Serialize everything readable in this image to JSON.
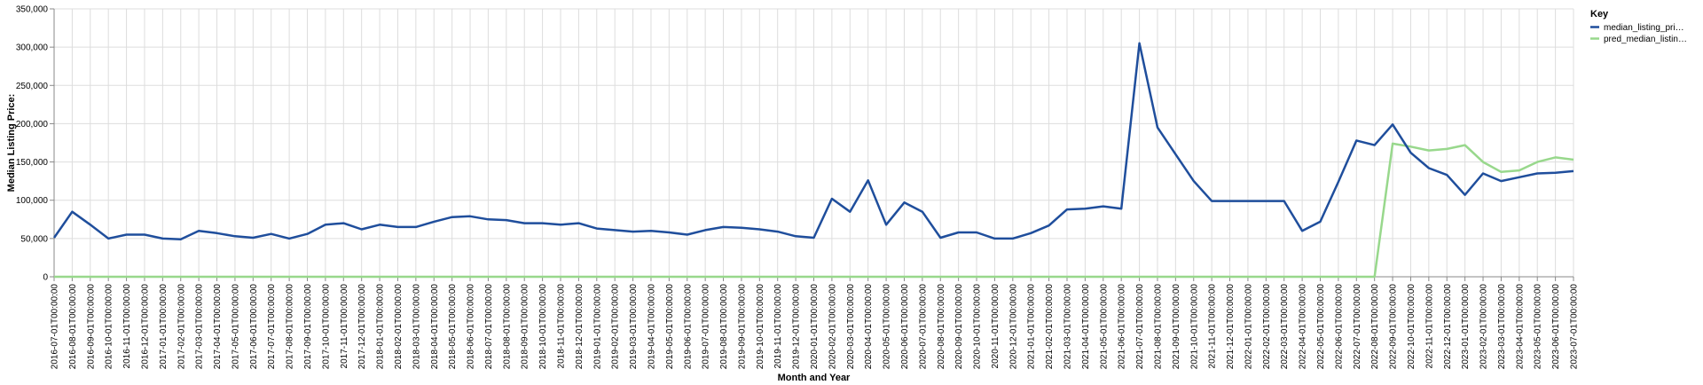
{
  "chart_data": {
    "type": "line",
    "xlabel": "Month and Year",
    "ylabel": "Median Listing Price:",
    "ylim": [
      0,
      350000
    ],
    "y_ticks": [
      "0",
      "50,000",
      "100,000",
      "150,000",
      "200,000",
      "250,000",
      "300,000",
      "350,000"
    ],
    "grid": true,
    "legend": {
      "title": "Key",
      "placement": "top-right",
      "entries": [
        "median_listing_pri…",
        "pred_median_listin…"
      ]
    },
    "x": [
      "2016-07-01T00:00:00",
      "2016-08-01T00:00:00",
      "2016-09-01T00:00:00",
      "2016-10-01T00:00:00",
      "2016-11-01T00:00:00",
      "2016-12-01T00:00:00",
      "2017-01-01T00:00:00",
      "2017-02-01T00:00:00",
      "2017-03-01T00:00:00",
      "2017-04-01T00:00:00",
      "2017-05-01T00:00:00",
      "2017-06-01T00:00:00",
      "2017-07-01T00:00:00",
      "2017-08-01T00:00:00",
      "2017-09-01T00:00:00",
      "2017-10-01T00:00:00",
      "2017-11-01T00:00:00",
      "2017-12-01T00:00:00",
      "2018-01-01T00:00:00",
      "2018-02-01T00:00:00",
      "2018-03-01T00:00:00",
      "2018-04-01T00:00:00",
      "2018-05-01T00:00:00",
      "2018-06-01T00:00:00",
      "2018-07-01T00:00:00",
      "2018-08-01T00:00:00",
      "2018-09-01T00:00:00",
      "2018-10-01T00:00:00",
      "2018-11-01T00:00:00",
      "2018-12-01T00:00:00",
      "2019-01-01T00:00:00",
      "2019-02-01T00:00:00",
      "2019-03-01T00:00:00",
      "2019-04-01T00:00:00",
      "2019-05-01T00:00:00",
      "2019-06-01T00:00:00",
      "2019-07-01T00:00:00",
      "2019-08-01T00:00:00",
      "2019-09-01T00:00:00",
      "2019-10-01T00:00:00",
      "2019-11-01T00:00:00",
      "2019-12-01T00:00:00",
      "2020-01-01T00:00:00",
      "2020-02-01T00:00:00",
      "2020-03-01T00:00:00",
      "2020-04-01T00:00:00",
      "2020-05-01T00:00:00",
      "2020-06-01T00:00:00",
      "2020-07-01T00:00:00",
      "2020-08-01T00:00:00",
      "2020-09-01T00:00:00",
      "2020-10-01T00:00:00",
      "2020-11-01T00:00:00",
      "2020-12-01T00:00:00",
      "2021-01-01T00:00:00",
      "2021-02-01T00:00:00",
      "2021-03-01T00:00:00",
      "2021-04-01T00:00:00",
      "2021-05-01T00:00:00",
      "2021-06-01T00:00:00",
      "2021-07-01T00:00:00",
      "2021-08-01T00:00:00",
      "2021-09-01T00:00:00",
      "2021-10-01T00:00:00",
      "2021-11-01T00:00:00",
      "2021-12-01T00:00:00",
      "2022-01-01T00:00:00",
      "2022-02-01T00:00:00",
      "2022-03-01T00:00:00",
      "2022-04-01T00:00:00",
      "2022-05-01T00:00:00",
      "2022-06-01T00:00:00",
      "2022-07-01T00:00:00",
      "2022-08-01T00:00:00",
      "2022-09-01T00:00:00",
      "2022-10-01T00:00:00",
      "2022-11-01T00:00:00",
      "2022-12-01T00:00:00",
      "2023-01-01T00:00:00",
      "2023-02-01T00:00:00",
      "2023-03-01T00:00:00",
      "2023-04-01T00:00:00",
      "2023-05-01T00:00:00",
      "2023-06-01T00:00:00",
      "2023-07-01T00:00:00"
    ],
    "series": [
      {
        "name": "median_listing_pri…",
        "color": "#1f4e9c",
        "values": [
          51000,
          85000,
          68000,
          50000,
          55000,
          55000,
          50000,
          49000,
          60000,
          57000,
          53000,
          51000,
          56000,
          50000,
          56000,
          68000,
          70000,
          62000,
          68000,
          65000,
          65000,
          72000,
          78000,
          79000,
          75000,
          74000,
          70000,
          70000,
          68000,
          70000,
          63000,
          61000,
          59000,
          60000,
          58000,
          55000,
          61000,
          65000,
          64000,
          62000,
          59000,
          53000,
          51000,
          102000,
          85000,
          126000,
          68000,
          97000,
          85000,
          51000,
          58000,
          58000,
          50000,
          50000,
          57000,
          67000,
          88000,
          89000,
          92000,
          89000,
          305000,
          195000,
          160000,
          125000,
          99000,
          99000,
          99000,
          99000,
          99000,
          60000,
          72000,
          124000,
          178000,
          172000,
          199000,
          162000,
          142000,
          133000,
          107000,
          135000,
          125000,
          130000,
          135000,
          136000,
          138000
        ]
      },
      {
        "name": "pred_median_listin…",
        "color": "#98d88c",
        "values": [
          0,
          0,
          0,
          0,
          0,
          0,
          0,
          0,
          0,
          0,
          0,
          0,
          0,
          0,
          0,
          0,
          0,
          0,
          0,
          0,
          0,
          0,
          0,
          0,
          0,
          0,
          0,
          0,
          0,
          0,
          0,
          0,
          0,
          0,
          0,
          0,
          0,
          0,
          0,
          0,
          0,
          0,
          0,
          0,
          0,
          0,
          0,
          0,
          0,
          0,
          0,
          0,
          0,
          0,
          0,
          0,
          0,
          0,
          0,
          0,
          0,
          0,
          0,
          0,
          0,
          0,
          0,
          0,
          0,
          0,
          0,
          0,
          0,
          0,
          174000,
          170000,
          165000,
          167000,
          172000,
          150000,
          137000,
          139000,
          150000,
          156000,
          153000
        ]
      }
    ]
  }
}
